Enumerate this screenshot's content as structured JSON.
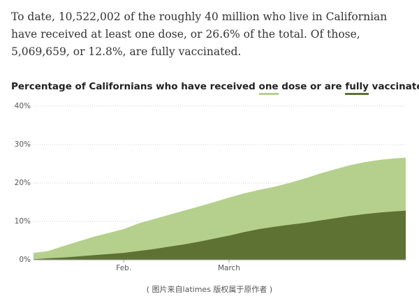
{
  "intro": {
    "text": "To date, 10,522,002 of the roughly 40 million who live in Californian have received at least one dose, or 26.6% of the total. Of those, 5,069,659, or 12.8%, are fully vaccinated."
  },
  "headline": {
    "prefix": "Percentage of Californians who have received ",
    "one": "one",
    "middle": " dose or are ",
    "fully": "fully",
    "suffix": " vaccinated"
  },
  "caption": "( 图片来自latimes 版权属于原作者 )",
  "colors": {
    "one_dose": "#b5d08c",
    "fully_vaccinated": "#5d7233",
    "grid": "#cccccc",
    "text": "#333333"
  },
  "chart_data": {
    "type": "area",
    "title": "Percentage of Californians who have received one dose or are fully vaccinated",
    "xlabel": "",
    "ylabel": "",
    "ylim": [
      0,
      40
    ],
    "yticks": [
      0,
      10,
      20,
      30,
      40
    ],
    "ytick_labels": [
      "0%",
      "10%",
      "20%",
      "30%",
      "40%"
    ],
    "xticks": [
      {
        "day": 24,
        "label": "Feb."
      },
      {
        "day": 52,
        "label": "March"
      }
    ],
    "grid": true,
    "legend": "inline in title",
    "x": [
      0,
      4,
      8,
      12,
      16,
      20,
      24,
      28,
      32,
      36,
      40,
      44,
      48,
      52,
      56,
      60,
      64,
      68,
      72,
      76,
      80,
      84,
      88,
      92,
      96,
      99
    ],
    "series": [
      {
        "name": "one",
        "values": [
          1.8,
          2.3,
          3.6,
          4.8,
          6.0,
          7.0,
          8.0,
          9.5,
          10.6,
          11.7,
          12.8,
          13.9,
          15.0,
          16.2,
          17.3,
          18.2,
          19.0,
          20.0,
          21.1,
          22.4,
          23.5,
          24.6,
          25.4,
          26.0,
          26.4,
          26.6
        ]
      },
      {
        "name": "fully",
        "values": [
          0.1,
          0.4,
          0.6,
          0.9,
          1.2,
          1.5,
          1.8,
          2.3,
          2.8,
          3.4,
          4.0,
          4.7,
          5.5,
          6.3,
          7.2,
          8.0,
          8.6,
          9.1,
          9.6,
          10.2,
          10.8,
          11.4,
          11.9,
          12.3,
          12.6,
          12.8
        ]
      }
    ]
  }
}
